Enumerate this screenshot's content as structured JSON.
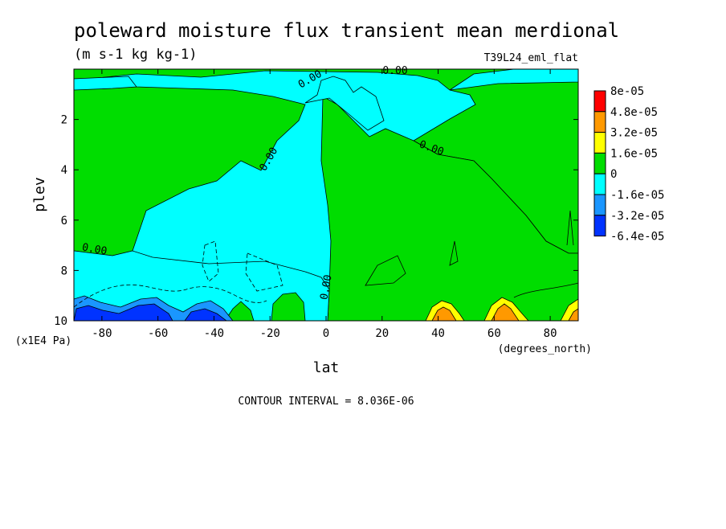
{
  "chart_data": {
    "type": "heatmap",
    "title": "poleward moisture flux transient mean merdional",
    "subtitle": "(m s-1 kg kg-1)",
    "experiment_label": "T39L24_eml_flat",
    "xlabel": "lat",
    "xunits": "(degrees_north)",
    "ylabel": "plev",
    "yunits": "(x1E4 Pa)",
    "xlim": [
      -90,
      90
    ],
    "ylim": [
      10,
      0
    ],
    "x_ticks": [
      -80,
      -60,
      -40,
      -20,
      0,
      20,
      40,
      60,
      80
    ],
    "y_ticks": [
      2,
      4,
      6,
      8,
      10
    ],
    "contour_interval_text": "CONTOUR INTERVAL = 8.036E-06",
    "contour_labels": [
      "0.00",
      "0.00",
      "0.00",
      "0.00",
      "0.00",
      "0.00",
      "0.00"
    ],
    "colorbar": {
      "labels": [
        "8e-05",
        "4.8e-05",
        "3.2e-05",
        "1.6e-05",
        "0",
        "-1.6e-05",
        "-3.2e-05",
        "-6.4e-05"
      ],
      "colors": [
        "#ff0000",
        "#ff9900",
        "#ffff00",
        "#00dd00",
        "#00ffff",
        "#1a96ff",
        "#0033ff"
      ]
    },
    "colors": {
      "negative": "#00ffff",
      "positive": "#00dd00",
      "mid_negative": "#1a96ff",
      "strong_negative": "#0033ff",
      "mid_positive": "#ffff00",
      "strong_positive": "#ff9900"
    }
  }
}
